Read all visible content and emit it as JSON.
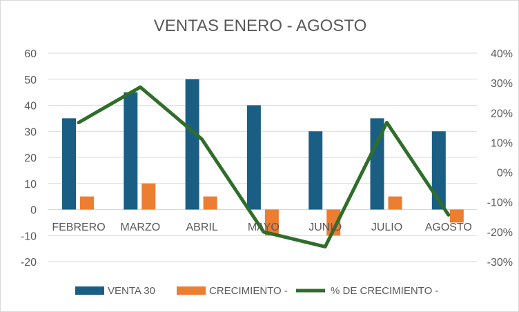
{
  "chart_data": {
    "type": "bar",
    "title": "VENTAS ENERO -  AGOSTO",
    "categories": [
      "FEBRERO",
      "MARZO",
      "ABRIL",
      "MAYO",
      "JUNIO",
      "JULIO",
      "AGOSTO"
    ],
    "series": [
      {
        "name": "VENTA 30",
        "kind": "bar",
        "axis": "left",
        "color": "#1a5e84",
        "values": [
          35,
          45,
          50,
          40,
          30,
          35,
          30
        ]
      },
      {
        "name": "CRECIMIENTO -",
        "kind": "bar",
        "axis": "left",
        "color": "#ed7d31",
        "values": [
          5,
          10,
          5,
          -10,
          -10,
          5,
          -5
        ]
      },
      {
        "name": "% DE CRECIMIENTO -",
        "kind": "line",
        "axis": "right",
        "color": "#2f6d2a",
        "values": [
          16.7,
          28.6,
          11.1,
          -20,
          -25,
          16.7,
          -14.3
        ]
      }
    ],
    "y_left": {
      "min": -20,
      "max": 60,
      "ticks": [
        "60",
        "50",
        "40",
        "30",
        "20",
        "10",
        "0",
        "-10",
        "-20"
      ]
    },
    "y_right": {
      "min": -30,
      "max": 40,
      "ticks": [
        "40%",
        "30%",
        "20%",
        "10%",
        "0%",
        "-10%",
        "-20%",
        "-30%"
      ]
    },
    "grid": true,
    "legend_position": "bottom"
  }
}
